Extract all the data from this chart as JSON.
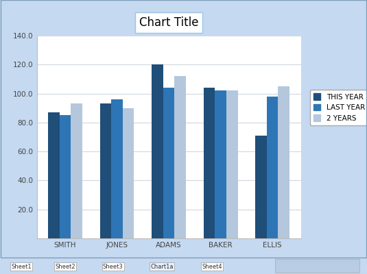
{
  "title": "Chart Title",
  "categories": [
    "SMITH",
    "JONES",
    "ADAMS",
    "BAKER",
    "ELLIS"
  ],
  "series": {
    "THIS YEAR": [
      87,
      93,
      120,
      104,
      71
    ],
    "LAST YEAR": [
      85,
      96,
      104,
      102,
      98
    ],
    "2 YEARS": [
      93,
      90,
      112,
      102,
      105
    ]
  },
  "colors": {
    "THIS YEAR": "#1F4E79",
    "LAST YEAR": "#2E75B6",
    "2 YEARS": "#B4C7DC"
  },
  "ylim": [
    0,
    140
  ],
  "yticks": [
    20.0,
    40.0,
    60.0,
    80.0,
    100.0,
    120.0,
    140.0
  ],
  "background_chart": "#FFFFFF",
  "background_fig": "#C5D9F1",
  "tab_bar_color": "#D4E3F5",
  "grid_color": "#D0D8E0",
  "bar_width": 0.22,
  "title_fontsize": 12,
  "tick_fontsize": 7.5,
  "legend_fontsize": 7.5
}
